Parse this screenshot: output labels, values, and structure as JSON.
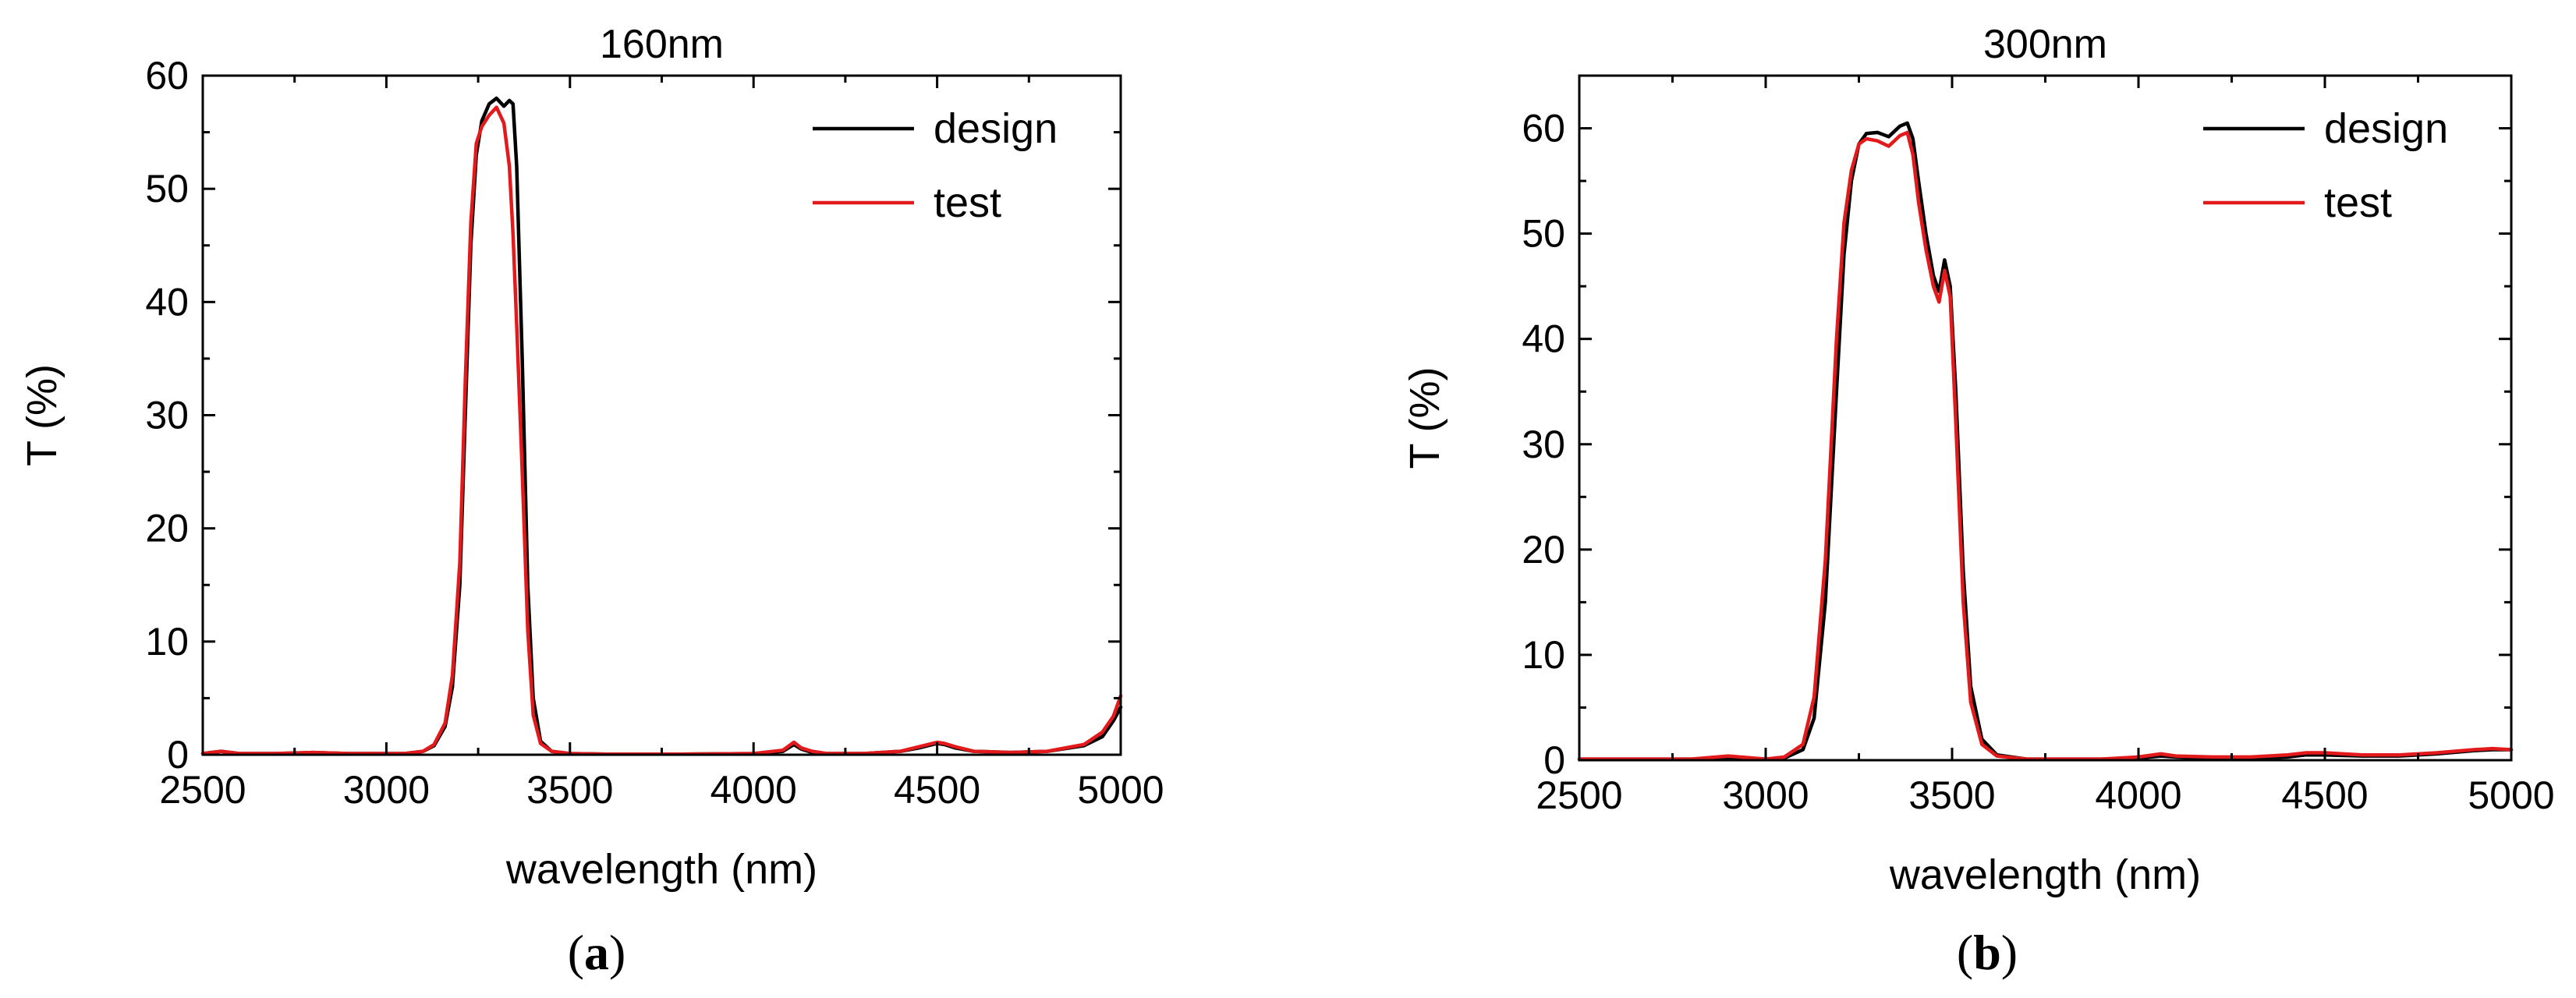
{
  "figure": {
    "panels": [
      {
        "caption_letter": "a"
      },
      {
        "caption_letter": "b"
      }
    ]
  },
  "colors": {
    "design": "#000000",
    "test": "#e31a1c",
    "axis": "#000000"
  },
  "chart_data": [
    {
      "type": "line",
      "title": "160nm",
      "xlabel": "wavelength (nm)",
      "ylabel": "T (%)",
      "xlim": [
        2500,
        5000
      ],
      "ylim": [
        0,
        60
      ],
      "xticks": [
        2500,
        3000,
        3500,
        4000,
        4500,
        5000
      ],
      "yticks": [
        0,
        10,
        20,
        30,
        40,
        50,
        60
      ],
      "legend": {
        "position": "top-right",
        "entries": [
          "design",
          "test"
        ]
      },
      "series": [
        {
          "name": "design",
          "x": [
            2500,
            2550,
            2600,
            2700,
            2800,
            2900,
            3000,
            3050,
            3100,
            3130,
            3160,
            3180,
            3200,
            3215,
            3230,
            3245,
            3260,
            3280,
            3300,
            3320,
            3335,
            3345,
            3355,
            3370,
            3385,
            3400,
            3420,
            3450,
            3500,
            3600,
            3800,
            4000,
            4080,
            4110,
            4130,
            4160,
            4200,
            4300,
            4400,
            4450,
            4500,
            4520,
            4550,
            4600,
            4700,
            4800,
            4900,
            4950,
            4980,
            5000
          ],
          "y": [
            0.1,
            0.3,
            0.1,
            0.1,
            0.2,
            0.1,
            0.1,
            0.1,
            0.3,
            0.8,
            2.5,
            6,
            15,
            30,
            45,
            53,
            56,
            57.5,
            58,
            57.3,
            57.8,
            57.5,
            52,
            35,
            15,
            5,
            1.2,
            0.3,
            0.1,
            0.05,
            0.05,
            0.1,
            0.3,
            0.9,
            0.5,
            0.2,
            0.1,
            0.1,
            0.3,
            0.6,
            1.0,
            0.9,
            0.6,
            0.3,
            0.2,
            0.3,
            0.8,
            1.6,
            3.0,
            4.2
          ]
        },
        {
          "name": "test",
          "x": [
            2500,
            2550,
            2600,
            2700,
            2800,
            2900,
            3000,
            3050,
            3100,
            3130,
            3160,
            3180,
            3200,
            3215,
            3230,
            3245,
            3260,
            3280,
            3300,
            3320,
            3335,
            3345,
            3355,
            3370,
            3385,
            3400,
            3420,
            3450,
            3500,
            3600,
            3800,
            4000,
            4080,
            4110,
            4130,
            4160,
            4200,
            4300,
            4400,
            4450,
            4500,
            4520,
            4550,
            4600,
            4700,
            4800,
            4900,
            4950,
            4980,
            5000
          ],
          "y": [
            0.1,
            0.3,
            0.1,
            0.1,
            0.2,
            0.1,
            0.1,
            0.1,
            0.3,
            0.9,
            2.8,
            7,
            17,
            33,
            47,
            54,
            55.5,
            56.5,
            57.2,
            55.8,
            52,
            46,
            38,
            25,
            11,
            3.5,
            1.0,
            0.3,
            0.1,
            0.05,
            0.05,
            0.1,
            0.4,
            1.1,
            0.6,
            0.3,
            0.1,
            0.1,
            0.3,
            0.7,
            1.1,
            1.0,
            0.7,
            0.3,
            0.2,
            0.3,
            0.9,
            2.0,
            3.4,
            5.2
          ]
        }
      ]
    },
    {
      "type": "line",
      "title": "300nm",
      "xlabel": "wavelength (nm)",
      "ylabel": "T (%)",
      "xlim": [
        2500,
        5000
      ],
      "ylim": [
        0,
        65
      ],
      "xticks": [
        2500,
        3000,
        3500,
        4000,
        4500,
        5000
      ],
      "yticks": [
        0,
        10,
        20,
        30,
        40,
        50,
        60
      ],
      "legend": {
        "position": "top-right",
        "entries": [
          "design",
          "test"
        ]
      },
      "series": [
        {
          "name": "design",
          "x": [
            2500,
            2600,
            2700,
            2800,
            2900,
            3000,
            3050,
            3100,
            3130,
            3160,
            3190,
            3210,
            3230,
            3250,
            3270,
            3300,
            3330,
            3360,
            3380,
            3395,
            3410,
            3430,
            3450,
            3465,
            3480,
            3495,
            3510,
            3530,
            3550,
            3580,
            3620,
            3700,
            3800,
            3900,
            4000,
            4060,
            4100,
            4200,
            4300,
            4400,
            4450,
            4500,
            4600,
            4700,
            4800,
            4900,
            4950,
            5000
          ],
          "y": [
            0.1,
            0.1,
            0.1,
            0.1,
            0.2,
            0.1,
            0.2,
            1.0,
            4,
            15,
            35,
            48,
            55,
            58.5,
            59.5,
            59.6,
            59.2,
            60.2,
            60.5,
            59,
            55,
            50,
            46,
            44.5,
            47.5,
            45,
            35,
            18,
            7,
            2,
            0.5,
            0.1,
            0.1,
            0.1,
            0.2,
            0.4,
            0.3,
            0.2,
            0.2,
            0.3,
            0.5,
            0.5,
            0.4,
            0.4,
            0.6,
            0.9,
            1.0,
            1.0
          ]
        },
        {
          "name": "test",
          "x": [
            2500,
            2600,
            2700,
            2800,
            2900,
            3000,
            3050,
            3100,
            3130,
            3160,
            3190,
            3210,
            3230,
            3250,
            3270,
            3300,
            3330,
            3360,
            3380,
            3395,
            3410,
            3430,
            3450,
            3465,
            3480,
            3495,
            3510,
            3530,
            3550,
            3580,
            3620,
            3700,
            3800,
            3900,
            4000,
            4060,
            4100,
            4200,
            4300,
            4400,
            4450,
            4500,
            4600,
            4700,
            4800,
            4900,
            4950,
            5000
          ],
          "y": [
            0.1,
            0.1,
            0.1,
            0.1,
            0.4,
            0.1,
            0.3,
            1.5,
            6,
            19,
            40,
            51,
            56,
            58.5,
            59,
            58.8,
            58.3,
            59.3,
            59.6,
            57.5,
            53,
            48.5,
            45,
            43.5,
            46.5,
            44,
            32,
            15,
            5.5,
            1.5,
            0.4,
            0.1,
            0.1,
            0.1,
            0.3,
            0.6,
            0.4,
            0.3,
            0.3,
            0.5,
            0.7,
            0.7,
            0.5,
            0.5,
            0.7,
            1.0,
            1.1,
            1.0
          ]
        }
      ]
    }
  ]
}
